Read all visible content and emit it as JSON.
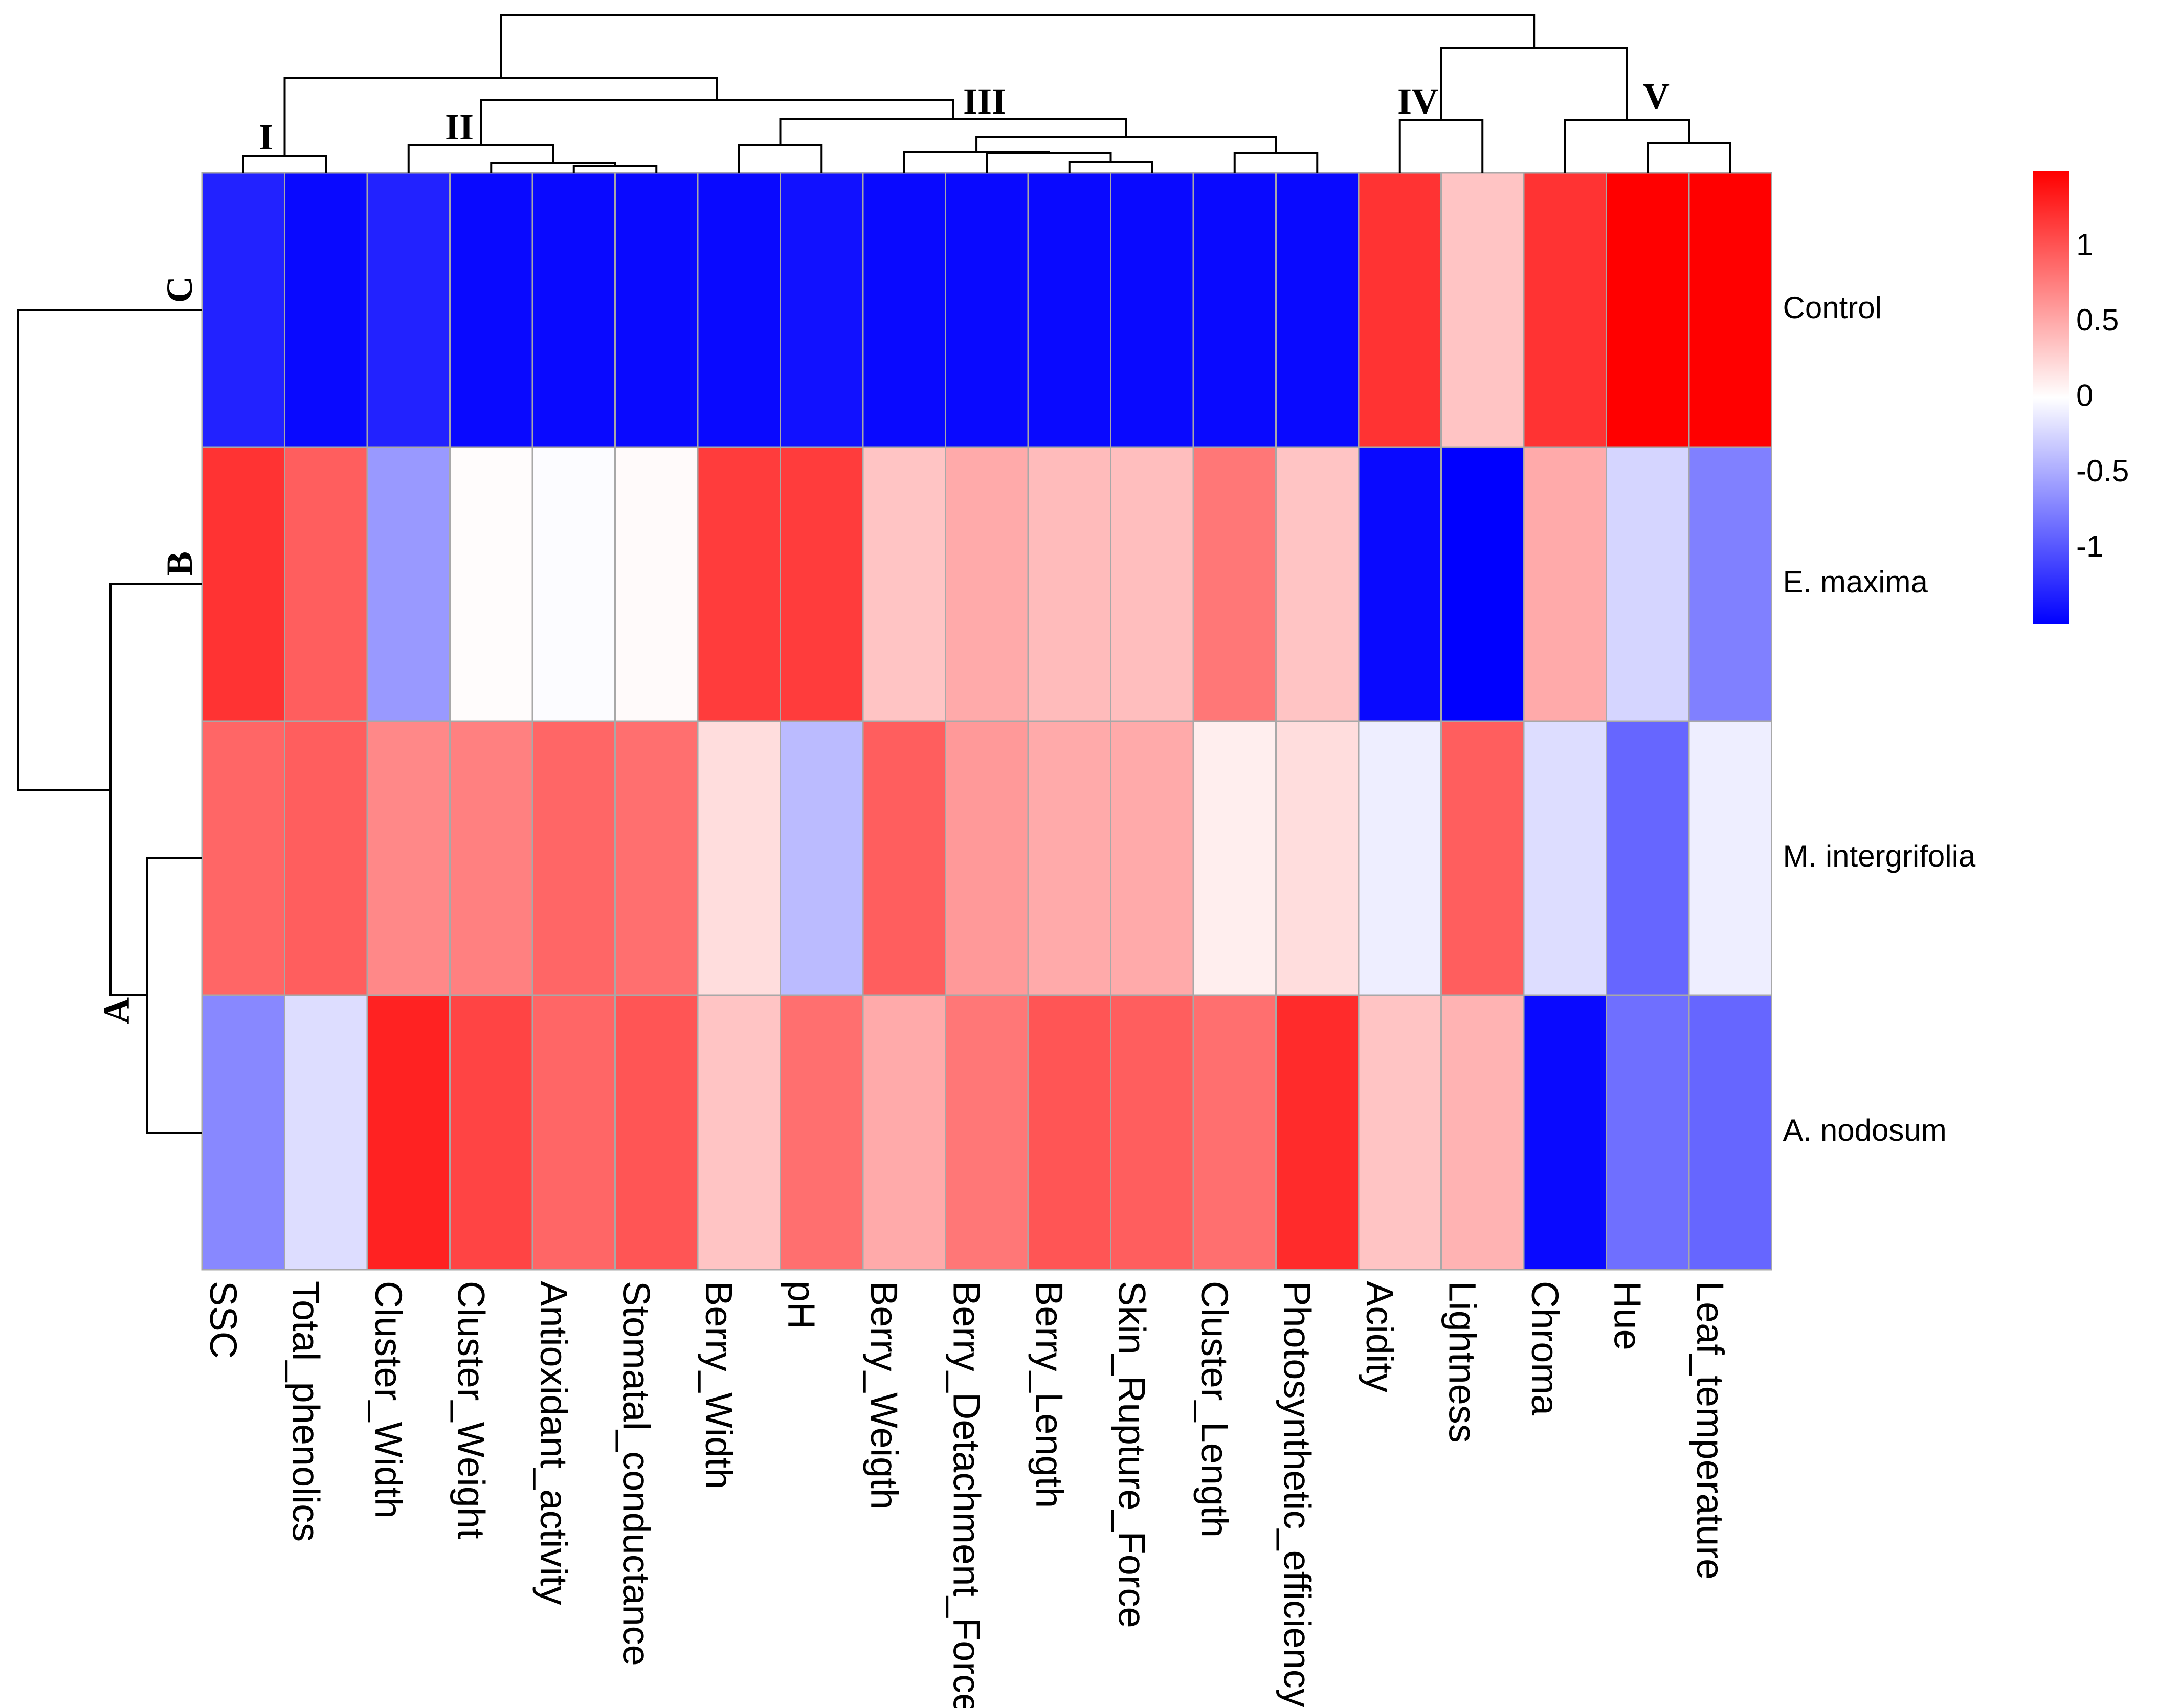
{
  "chart_data": {
    "type": "heatmap",
    "rows": [
      "Control",
      "E. maxima",
      "M. intergrifolia",
      "A. nodosum"
    ],
    "columns": [
      "SSC",
      "Total_phenolics",
      "Cluster_Width",
      "Cluster_Weight",
      "Antioxidant_activity",
      "Stomatal_conductance",
      "Berry_Width",
      "pH",
      "Berry_Weigth",
      "Berry_Detachment_Force",
      "Berry_Length",
      "Skin_Rupture_Force",
      "Cluster_Length",
      "Photosynthetic_efficiency",
      "Acidity",
      "Lightness",
      "Chroma",
      "Hue",
      "Leaf_temperature"
    ],
    "values": [
      [
        -1.3,
        -1.45,
        -1.3,
        -1.45,
        -1.45,
        -1.45,
        -1.45,
        -1.4,
        -1.45,
        -1.45,
        -1.45,
        -1.45,
        -1.45,
        -1.45,
        1.2,
        0.35,
        1.2,
        1.5,
        1.5
      ],
      [
        1.2,
        0.95,
        -0.6,
        0.02,
        -0.02,
        0.03,
        1.15,
        1.15,
        0.35,
        0.5,
        0.4,
        0.38,
        0.8,
        0.35,
        -1.45,
        -1.5,
        0.5,
        -0.25,
        -0.75
      ],
      [
        0.9,
        0.95,
        0.7,
        0.75,
        0.9,
        0.85,
        0.2,
        -0.4,
        0.95,
        0.6,
        0.5,
        0.5,
        0.1,
        0.2,
        -0.1,
        0.95,
        -0.2,
        -0.9,
        -0.1
      ],
      [
        -0.7,
        -0.2,
        1.3,
        1.1,
        0.9,
        1.0,
        0.35,
        0.85,
        0.5,
        0.8,
        1.0,
        0.95,
        0.85,
        1.25,
        0.35,
        0.45,
        -1.45,
        -0.85,
        -0.9
      ]
    ],
    "color_scale": {
      "low_color": "#0000ff",
      "mid_color": "#ffffff",
      "high_color": "#ff0000",
      "range": [
        -1.5,
        1.5
      ],
      "ticks": [
        {
          "value": 1,
          "label": "1"
        },
        {
          "value": 0.5,
          "label": "0.5"
        },
        {
          "value": 0,
          "label": "0"
        },
        {
          "value": -0.5,
          "label": "-0.5"
        },
        {
          "value": -1,
          "label": "-1"
        }
      ]
    },
    "column_cluster_labels": [
      "I",
      "II",
      "III",
      "IV",
      "V"
    ],
    "row_cluster_labels": [
      "C",
      "B",
      "A"
    ],
    "title": "",
    "xlabel": "",
    "ylabel": ""
  }
}
